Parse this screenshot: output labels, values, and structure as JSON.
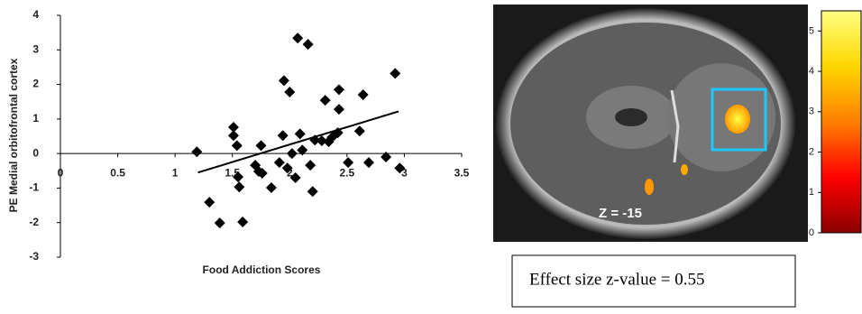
{
  "chart_data": [
    {
      "type": "scatter",
      "x_label": "Food Addiction Scores",
      "y_label": "PE Medial orbitofrontal cortex",
      "x": [
        1.19,
        1.3,
        1.39,
        1.51,
        1.51,
        1.54,
        1.55,
        1.56,
        1.59,
        1.7,
        1.73,
        1.75,
        1.76,
        1.84,
        1.91,
        1.94,
        1.95,
        1.98,
        2.0,
        2.02,
        2.05,
        2.07,
        2.09,
        2.11,
        2.16,
        2.18,
        2.2,
        2.22,
        2.28,
        2.31,
        2.34,
        2.37,
        2.42,
        2.43,
        2.43,
        2.51,
        2.61,
        2.64,
        2.69,
        2.84,
        2.92,
        2.96
      ],
      "values": [
        0.05,
        -1.41,
        -2.01,
        0.76,
        0.52,
        0.23,
        -0.68,
        -0.97,
        -1.98,
        -0.34,
        -0.52,
        0.23,
        -0.57,
        -0.99,
        -0.26,
        0.52,
        2.11,
        -0.42,
        1.78,
        0.0,
        -0.7,
        3.34,
        0.57,
        0.1,
        3.16,
        -0.34,
        -1.1,
        0.39,
        0.37,
        1.54,
        0.34,
        0.47,
        0.6,
        1.85,
        1.28,
        -0.26,
        0.65,
        1.7,
        -0.26,
        -0.1,
        2.32,
        -0.42
      ],
      "color": "#000000",
      "trendline": {
        "x": [
          1.2,
          2.95
        ],
        "y": [
          -0.55,
          1.22
        ]
      },
      "xlim": [
        0,
        3.5
      ],
      "xticks": [
        0,
        0.5,
        1,
        1.5,
        2,
        2.5,
        3,
        3.5
      ],
      "ylim": [
        -3,
        4
      ],
      "yticks": [
        -3,
        -2,
        -1,
        0,
        1,
        2,
        3,
        4
      ]
    },
    {
      "type": "colorbar",
      "colors": [
        "#8b0000",
        "#ff0000",
        "#ff7f00",
        "#ffd700",
        "#ffff80"
      ],
      "ylim": [
        0,
        5.5
      ],
      "yticks": [
        0,
        1,
        2,
        3,
        4,
        5
      ]
    }
  ],
  "image": {
    "label": "Z = -15"
  },
  "caption": "Effect size z-value = 0.55"
}
